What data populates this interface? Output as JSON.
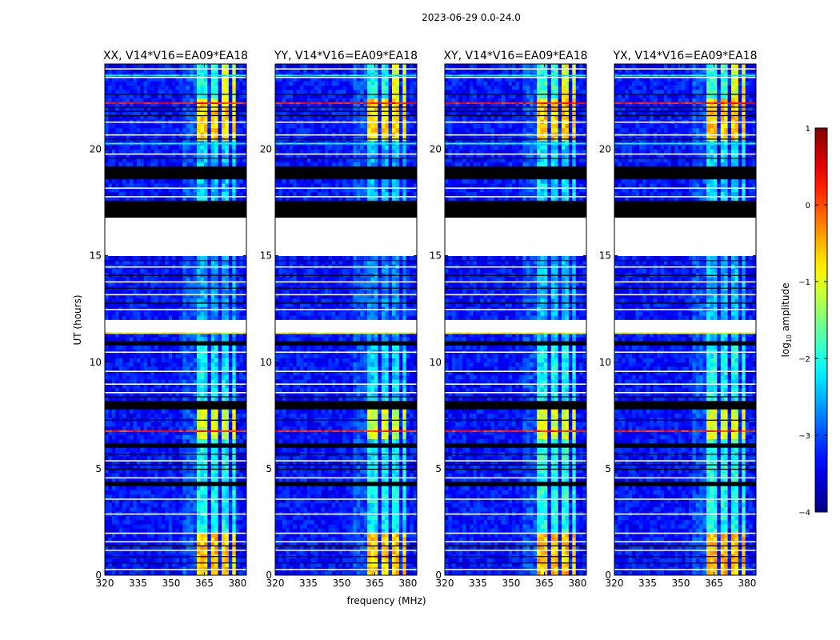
{
  "chart_data": {
    "type": "heatmap",
    "title": "2023-06-29 0.0-24.0",
    "xlabel": "frequency (MHz)",
    "ylabel": "UT (hours)",
    "xlim": [
      320,
      384
    ],
    "ylim": [
      0,
      24
    ],
    "xticks": [
      "320",
      "335",
      "350",
      "365",
      "380"
    ],
    "xtick_values": [
      320,
      335,
      350,
      365,
      380
    ],
    "yticks": [
      "0",
      "5",
      "10",
      "15",
      "20"
    ],
    "ytick_values": [
      0,
      5,
      10,
      15,
      20
    ],
    "panels": [
      {
        "title": "XX, V14*V16=EA09*EA18",
        "band_scale": 1.0
      },
      {
        "title": "YY, V14*V16=EA09*EA18",
        "band_scale": 1.05
      },
      {
        "title": "XY, V14*V16=EA09*EA18",
        "band_scale": 0.95
      },
      {
        "title": "YX, V14*V16=EA09*EA18",
        "band_scale": 0.95
      }
    ],
    "colorbar": {
      "label": "log10 amplitude",
      "label_main": "log",
      "label_sub": "10",
      "label_rest": " amplitude",
      "range": [
        -4,
        1
      ],
      "ticks": [
        "1",
        "0",
        "−1",
        "−2",
        "−3",
        "−4"
      ],
      "tick_values": [
        1,
        0,
        -1,
        -2,
        -3,
        -4
      ],
      "colormap": "jet"
    },
    "background_level": -3.3,
    "band_MHz": [
      362,
      380
    ],
    "subband_gaps_MHz": [
      366.5,
      371.5,
      376.5
    ],
    "band_segments_hours": [
      {
        "t0": 0,
        "t1": 2,
        "level": -0.6
      },
      {
        "t0": 2,
        "t1": 6.5,
        "level": -2.1
      },
      {
        "t0": 6.5,
        "t1": 7.8,
        "level": -1.1
      },
      {
        "t0": 7.8,
        "t1": 11,
        "level": -2.2
      },
      {
        "t0": 11,
        "t1": 15,
        "level": -2.6
      },
      {
        "t0": 15,
        "t1": 20.5,
        "level": -2.4
      },
      {
        "t0": 20.5,
        "t1": 22.4,
        "level": -0.7
      },
      {
        "t0": 22.4,
        "t1": 24,
        "level": -2.0
      }
    ],
    "bright_lines_hours": [
      {
        "t": 6.8,
        "level": 0.2
      },
      {
        "t": 11.4,
        "level": -0.9
      },
      {
        "t": 20.3,
        "level": -2.0
      },
      {
        "t": 22.2,
        "level": 0.3
      },
      {
        "t": 23.5,
        "level": -2.2
      }
    ],
    "flagged_ranges_hours": [
      [
        11.5,
        12.0
      ],
      [
        15.0,
        16.8
      ]
    ],
    "flagged_lines_hours": [
      0.3,
      1.2,
      1.6,
      2.0,
      2.9,
      3.6,
      4.6,
      5.4,
      8.6,
      9.0,
      9.6,
      10.5,
      12.5,
      13.2,
      13.8,
      14.5,
      17.8,
      18.2,
      19.8,
      20.7,
      21.3,
      23.4,
      23.8
    ],
    "blank_ranges_hours": [
      [
        4.2,
        4.4
      ],
      [
        6.0,
        6.3
      ],
      [
        7.8,
        8.2
      ],
      [
        10.9,
        11.1
      ],
      [
        16.9,
        17.6
      ],
      [
        18.7,
        19.3
      ]
    ],
    "blank_lines_hours": [
      0.6,
      0.9,
      1.4,
      5.0,
      5.2,
      5.7,
      7.3,
      8.4,
      12.8,
      13.5,
      14.1,
      14.8,
      19.6,
      20.5,
      21.6,
      21.8,
      22.0,
      22.6
    ]
  }
}
